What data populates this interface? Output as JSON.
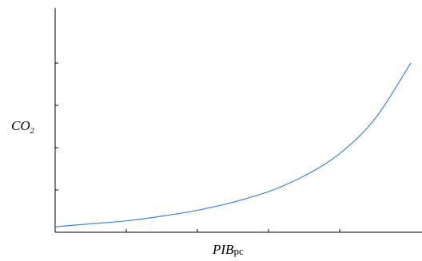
{
  "chart_data": {
    "type": "line",
    "title": "",
    "ylabel": {
      "main": "CO",
      "sub": "2"
    },
    "xlabel": {
      "main": "PIB",
      "sub": "pc"
    },
    "xlim": [
      0,
      5
    ],
    "ylim": [
      0,
      5
    ],
    "x_ticks": [
      1,
      2,
      3,
      4
    ],
    "y_ticks": [
      1,
      2,
      3,
      4
    ],
    "grid": false,
    "series": [
      {
        "color": "#3b86e6",
        "x": [
          0,
          0.5,
          1,
          1.5,
          2,
          2.5,
          3,
          3.5,
          4,
          4.5,
          5
        ],
        "y": [
          0.13,
          0.2,
          0.27,
          0.38,
          0.52,
          0.71,
          0.96,
          1.33,
          1.86,
          2.69,
          4.0
        ]
      }
    ]
  }
}
